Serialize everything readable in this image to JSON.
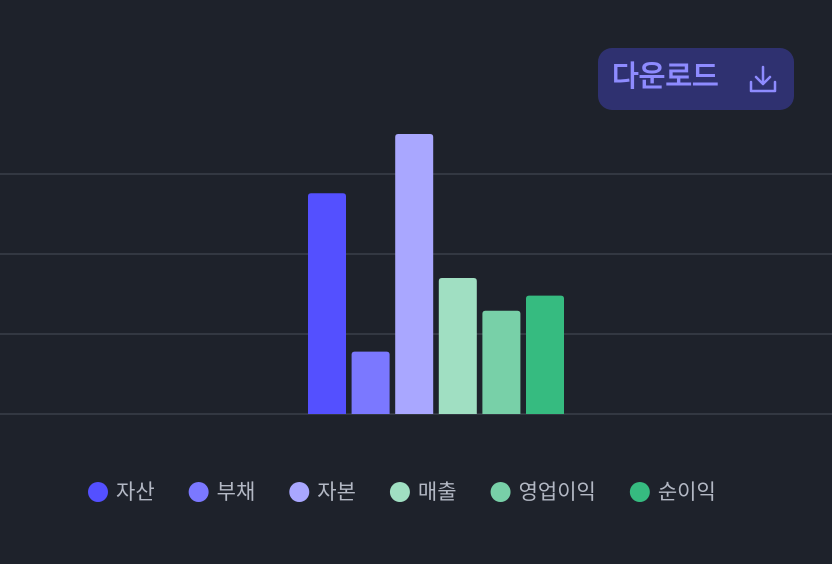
{
  "download_button": {
    "label": "다운로드"
  },
  "chart_data": {
    "type": "bar",
    "categories": [
      "자산",
      "부채",
      "자본",
      "매출",
      "영업이익",
      "순이익"
    ],
    "values": [
      2.76,
      0.78,
      3.5,
      1.7,
      1.29,
      1.48
    ],
    "colors": [
      "#5450ff",
      "#7b78ff",
      "#a9a7ff",
      "#a0dfc2",
      "#78d0a8",
      "#36bb80"
    ],
    "ylim": [
      0,
      3.5
    ],
    "yticks": [
      0,
      1,
      2,
      3
    ],
    "grid": true,
    "legend": "bottom"
  }
}
